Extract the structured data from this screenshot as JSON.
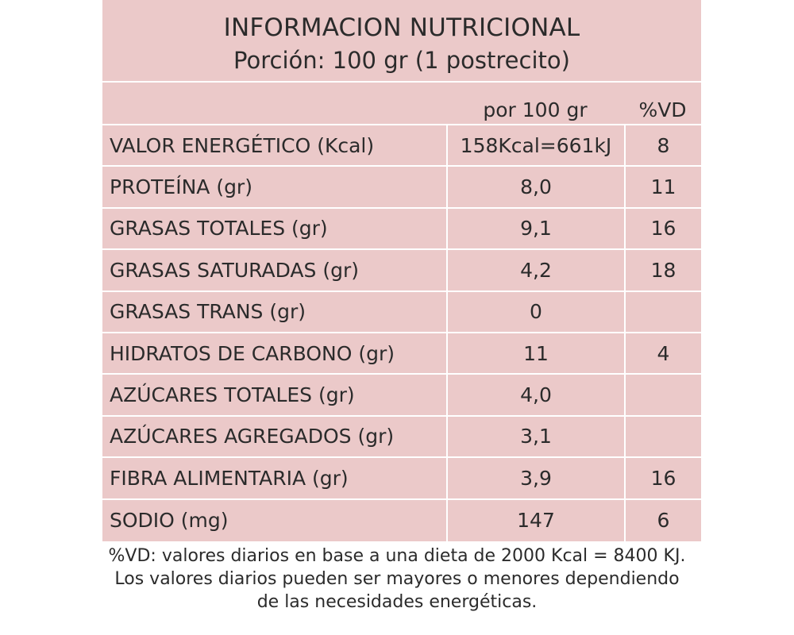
{
  "title": {
    "line1": "INFORMACION NUTRICIONAL",
    "line2": "Porción: 100 gr (1 postrecito)"
  },
  "columns": {
    "per_100": "por 100 gr",
    "vd": "%VD"
  },
  "rows": [
    {
      "label": "VALOR ENERGÉTICO  (Kcal)",
      "value": "158Kcal=661kJ",
      "vd": "8"
    },
    {
      "label": "PROTEÍNA (gr)",
      "value": "8,0",
      "vd": "11"
    },
    {
      "label": "GRASAS TOTALES (gr)",
      "value": "9,1",
      "vd": "16"
    },
    {
      "label": "GRASAS SATURADAS (gr)",
      "value": "4,2",
      "vd": "18"
    },
    {
      "label": "GRASAS TRANS (gr)",
      "value": "0",
      "vd": ""
    },
    {
      "label": "HIDRATOS DE CARBONO (gr)",
      "value": "11",
      "vd": "4"
    },
    {
      "label": "AZÚCARES TOTALES (gr)",
      "value": "4,0",
      "vd": ""
    },
    {
      "label": "AZÚCARES AGREGADOS (gr)",
      "value": "3,1",
      "vd": ""
    },
    {
      "label": "FIBRA ALIMENTARIA (gr)",
      "value": "3,9",
      "vd": "16"
    },
    {
      "label": "SODIO (mg)",
      "value": "147",
      "vd": "6"
    }
  ],
  "footnote": {
    "line1": "%VD:  valores diarios en base a una dieta de 2000 Kcal = 8400 KJ.",
    "line2": "Los valores diarios pueden ser mayores o menores dependiendo",
    "line3": "de las necesidades energéticas."
  },
  "colors": {
    "panel_background": "#ebc9c9",
    "text": "#2b2b2b",
    "grid_lines": "#ffffff"
  }
}
